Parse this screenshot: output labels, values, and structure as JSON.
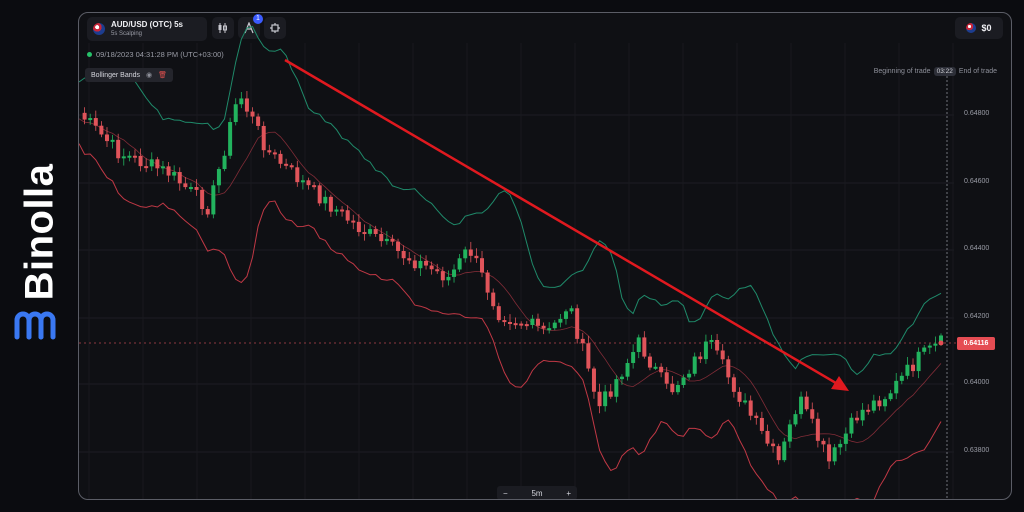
{
  "brand": {
    "name": "Binolla"
  },
  "topbar": {
    "asset_name": "AUD/USD (OTC) 5s",
    "asset_sub": "5s Scalping",
    "tools": [
      {
        "icon": "candlestick-icon"
      },
      {
        "icon": "drawing-tools-icon",
        "badge": "1"
      },
      {
        "icon": "indicators-icon"
      }
    ],
    "balance": "$0"
  },
  "chart": {
    "datetime": "09/18/2023 04:31:28 PM (UTC+03:00)",
    "indicator_label": "Bollinger Bands",
    "beginning_label": "Beginning of trade",
    "trade_time": "03:22",
    "end_label": "End of trade",
    "current_price": "0.64116",
    "y_ticks": [
      "0.64800",
      "0.64600",
      "0.64400",
      "0.64200",
      "0.64000",
      "0.63800"
    ],
    "timeframe": "5m",
    "zoom_out": "−",
    "zoom_in": "+"
  },
  "colors": {
    "bullish": "#22b35e",
    "bearish": "#e0545a",
    "upper_band": "#1f8a6a",
    "lower_band": "#c03845",
    "arrow": "#e0191f"
  }
}
